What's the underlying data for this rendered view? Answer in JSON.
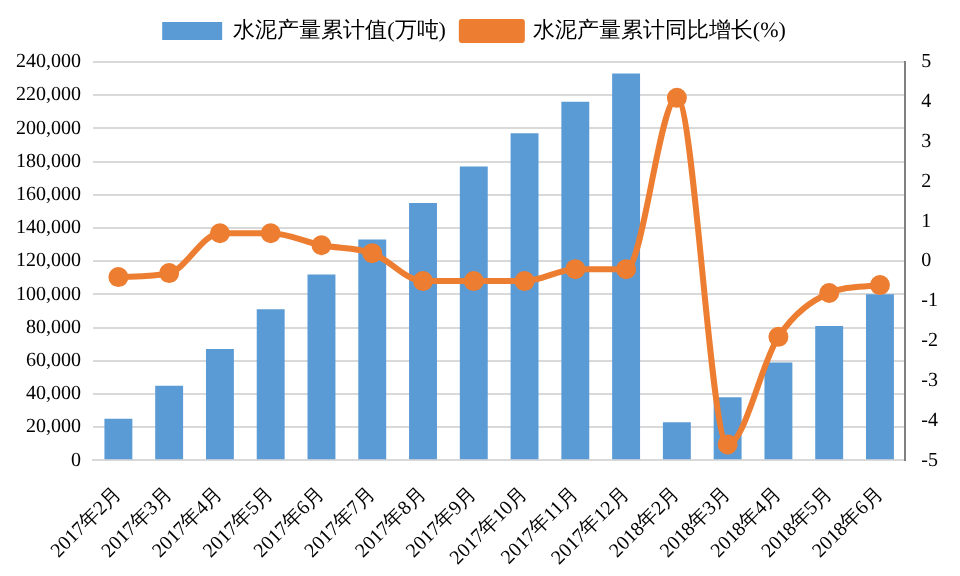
{
  "chart_data": {
    "type": "bar",
    "categories": [
      "2017年2月",
      "2017年3月",
      "2017年4月",
      "2017年5月",
      "2017年6月",
      "2017年7月",
      "2017年8月",
      "2017年9月",
      "2017年10月",
      "2017年11月",
      "2017年12月",
      "2018年2月",
      "2018年3月",
      "2018年4月",
      "2018年5月",
      "2018年6月"
    ],
    "series": [
      {
        "name": "水泥产量累计值(万吨)",
        "color": "#5b9bd5",
        "values": [
          25000,
          45000,
          67000,
          91000,
          112000,
          133000,
          155000,
          177000,
          197000,
          216000,
          233000,
          23000,
          38000,
          59000,
          81000,
          100000
        ]
      },
      {
        "name": "水泥产量累计同比增长(%)",
        "type": "line",
        "axis": "y2",
        "color": "#ed7d31",
        "values": [
          -0.4,
          -0.3,
          0.7,
          0.7,
          0.4,
          0.2,
          -0.5,
          -0.5,
          -0.5,
          -0.2,
          -0.2,
          4.1,
          -4.6,
          -1.9,
          -0.8,
          -0.6
        ]
      }
    ],
    "ylim": [
      0,
      240000
    ],
    "yticks": [
      0,
      {
        "value": 20000,
        "label": "20,000"
      },
      {
        "value": 40000,
        "label": "40,000"
      },
      {
        "value": 60000,
        "label": "60,000"
      },
      {
        "value": 80000,
        "label": "80,000"
      },
      {
        "value": 100000,
        "label": "100,000"
      },
      {
        "value": 120000,
        "label": "120,000"
      },
      {
        "value": 140000,
        "label": "140,000"
      },
      {
        "value": 160000,
        "label": "160,000"
      },
      {
        "value": 180000,
        "label": "180,000"
      },
      {
        "value": 200000,
        "label": "200,000"
      },
      {
        "value": 220000,
        "label": "220,000"
      },
      {
        "value": 240000,
        "label": "240,000"
      }
    ],
    "y2lim": [
      -5,
      5
    ],
    "y2ticks": [
      -5,
      -4,
      -3,
      -2,
      -1,
      0,
      1,
      2,
      3,
      4,
      5
    ],
    "grid": "y",
    "legend": "top",
    "marker": "circle"
  }
}
